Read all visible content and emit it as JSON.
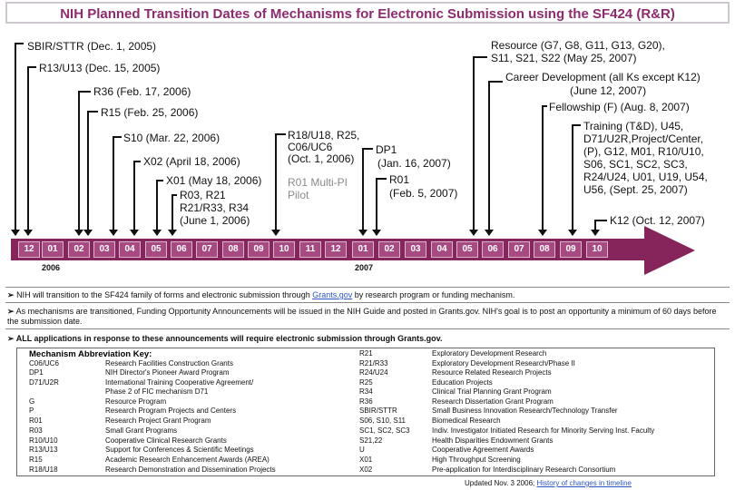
{
  "title": "NIH Planned Transition Dates of Mechanisms for Electronic Submission using the SF424 (R&R)",
  "timeline": {
    "labels": [
      {
        "id": "sbir",
        "text": "SBIR/STTR (Dec. 1, 2005)"
      },
      {
        "id": "r13",
        "text": "R13/U13 (Dec. 15, 2005)"
      },
      {
        "id": "r36",
        "text": "R36 (Feb. 17, 2006)"
      },
      {
        "id": "r15",
        "text": "R15 (Feb. 25, 2006)"
      },
      {
        "id": "s10",
        "text": "S10 (Mar. 22, 2006)"
      },
      {
        "id": "x02",
        "text": "X02 (April 18, 2006)"
      },
      {
        "id": "x01",
        "text": "X01 (May 18, 2006)"
      },
      {
        "id": "r03_1",
        "text": "R03, R21"
      },
      {
        "id": "r03_2",
        "text": "R21/R33, R34"
      },
      {
        "id": "r03_3",
        "text": "(June 1, 2006)"
      },
      {
        "id": "r18_1",
        "text": "R18/U18, R25,"
      },
      {
        "id": "r18_2",
        "text": "C06/UC6"
      },
      {
        "id": "r18_3",
        "text": "(Oct. 1, 2006)"
      },
      {
        "id": "r01pi_1",
        "text": "R01 Multi-PI"
      },
      {
        "id": "r01pi_2",
        "text": "Pilot"
      },
      {
        "id": "dp1_1",
        "text": "DP1"
      },
      {
        "id": "dp1_2",
        "text": "(Jan. 16, 2007)"
      },
      {
        "id": "r01_1",
        "text": "R01"
      },
      {
        "id": "r01_2",
        "text": "(Feb. 5, 2007)"
      },
      {
        "id": "res_1",
        "text": "Resource (G7, G8, G11, G13, G20),"
      },
      {
        "id": "res_2",
        "text": "S11, S21, S22 (May 25, 2007)"
      },
      {
        "id": "car_1",
        "text": "Career Development (all Ks except K12)"
      },
      {
        "id": "car_2",
        "text": "(June 12, 2007)"
      },
      {
        "id": "fel",
        "text": "Fellowship (F) (Aug. 8, 2007)"
      },
      {
        "id": "tr_1",
        "text": "Training (T&D), U45,"
      },
      {
        "id": "tr_2",
        "text": "D71/U2R,Project/Center,"
      },
      {
        "id": "tr_3",
        "text": "(P), G12, M01, R10/U10,"
      },
      {
        "id": "tr_4",
        "text": "S06, SC1, SC2, SC3,"
      },
      {
        "id": "tr_5",
        "text": "R24/U24, U01, U19, U54,"
      },
      {
        "id": "tr_6",
        "text": "U56, (Sept. 25, 2007)"
      },
      {
        "id": "k12",
        "text": "K12 (Oct. 12, 2007)"
      }
    ],
    "months": [
      "12",
      "01",
      "02",
      "03",
      "04",
      "05",
      "06",
      "07",
      "08",
      "09",
      "10",
      "11",
      "12",
      "01",
      "02",
      "03",
      "04",
      "05",
      "06",
      "07",
      "08",
      "09",
      "10"
    ],
    "years": [
      "2006",
      "2007"
    ]
  },
  "bullets": [
    {
      "mark": "➢",
      "pre": "NIH will transition to the SF424 family of forms and electronic submission through ",
      "link": "Grants.gov",
      "post": " by research program or funding mechanism."
    },
    {
      "mark": "➢",
      "pre": "As mechanisms are transitioned, Funding Opportunity Announcements will be issued in the NIH Guide and posted in Grants.gov. NIH's goal is to post an opportunity a minimum of 60 days before the submission date.",
      "link": "",
      "post": ""
    },
    {
      "mark": "➢",
      "pre": "ALL applications in response to these announcements will require electronic submission through Grants.gov.",
      "link": "",
      "post": ""
    }
  ],
  "key": {
    "title": "Mechanism Abbreviation Key:",
    "left": [
      {
        "code": "C06/UC6",
        "desc": "Research Facilities Construction Grants"
      },
      {
        "code": "DP1",
        "desc": "NIH Director's Pioneer Award Program"
      },
      {
        "code": "D71/U2R",
        "desc": "International Training Cooperative Agreement/"
      },
      {
        "code": "",
        "desc": "Phase 2 of FIC mechanism D71"
      },
      {
        "code": "G",
        "desc": "Resource Program"
      },
      {
        "code": "P",
        "desc": "Research Program Projects and Centers"
      },
      {
        "code": "R01",
        "desc": "Research Project Grant Program"
      },
      {
        "code": "R03",
        "desc": "Small Grant Programs"
      },
      {
        "code": "R10/U10",
        "desc": "Cooperative Clinical Research Grants"
      },
      {
        "code": "R13/U13",
        "desc": "Support for Conferences & Scientific Meetings"
      },
      {
        "code": "R15",
        "desc": "Academic Research Enhancement Awards (AREA)"
      },
      {
        "code": "R18/U18",
        "desc": "Research Demonstration and Dissemination Projects"
      }
    ],
    "right": [
      {
        "code": "R21",
        "desc": "Exploratory Development Research"
      },
      {
        "code": "R21/R33",
        "desc": "Exploratory Development Research/Phase II"
      },
      {
        "code": "R24/U24",
        "desc": "Resource Related Research Projects"
      },
      {
        "code": "R25",
        "desc": "Education Projects"
      },
      {
        "code": "R34",
        "desc": "Clinical Trial Planning Grant Program"
      },
      {
        "code": "R36",
        "desc": "Research Dissertation Grant Program"
      },
      {
        "code": "SBIR/STTR",
        "desc": "Small Business Innovation Research/Technology Transfer"
      },
      {
        "code": "S06, S10, S11",
        "desc": "Biomedical Research"
      },
      {
        "code": "SC1, SC2, SC3",
        "desc": "Indiv. Investigator Initiated Research for Minority Serving Inst. Faculty"
      },
      {
        "code": "S21,22",
        "desc": "Health Disparities Endowment Grants"
      },
      {
        "code": "U",
        "desc": "Cooperative Agreement Awards"
      },
      {
        "code": "X01",
        "desc": "High Throughput Screening"
      },
      {
        "code": "X02",
        "desc": "Pre-application for Interdisciplinary Research Consortium"
      }
    ]
  },
  "footer": {
    "pre": "Updated Nov. 3 2006; ",
    "link": "History of changes in timeline"
  }
}
